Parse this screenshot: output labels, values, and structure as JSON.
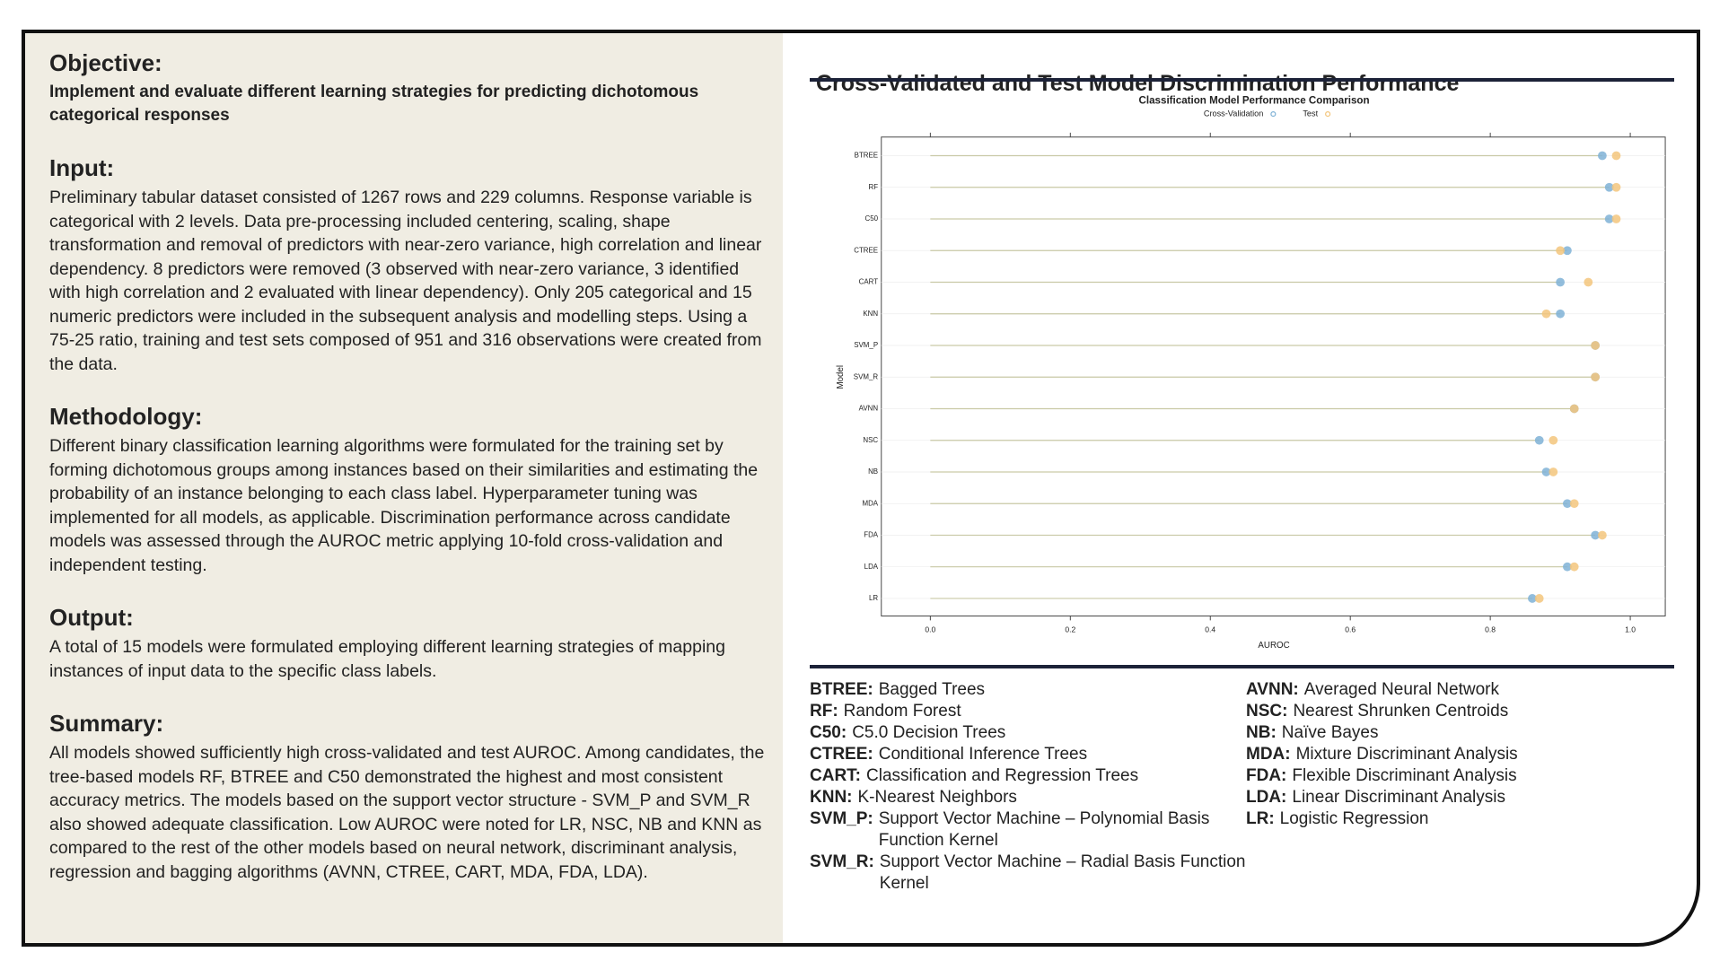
{
  "left": {
    "sections": [
      {
        "heading": "Objective:",
        "lead": "Implement and evaluate different learning strategies for predicting dichotomous categorical responses"
      },
      {
        "heading": "Input:",
        "body": "Preliminary tabular dataset consisted of 1267 rows and 229 columns. Response variable is categorical with 2 levels. Data pre-processing included centering, scaling, shape transformation and removal of predictors with near-zero variance, high correlation and linear dependency. 8 predictors were removed (3 observed with near-zero variance, 3 identified with high correlation and 2 evaluated with linear dependency). Only 205 categorical and 15 numeric predictors were included in the subsequent analysis and modelling steps. Using a 75-25 ratio, training and test sets composed of 951 and 316 observations were created from the data."
      },
      {
        "heading": "Methodology:",
        "body": "Different binary classification learning algorithms were formulated for the training set by forming dichotomous groups among instances based on their similarities and estimating the probability of an instance belonging to each class label. Hyperparameter tuning was implemented for all models, as applicable. Discrimination performance across candidate models was assessed through the AUROC metric applying 10-fold cross-validation and independent testing."
      },
      {
        "heading": "Output:",
        "body": "A total of 15 models were formulated employing different learning strategies of mapping instances of input data to the specific class labels."
      },
      {
        "heading": "Summary:",
        "body": "All models showed sufficiently high cross-validated and test AUROC. Among candidates, the tree-based models RF, BTREE and C50 demonstrated the highest and most consistent accuracy metrics. The models based on the support vector structure - SVM_P and SVM_R also showed adequate classification. Low AUROC were noted for LR, NSC, NB and KNN as compared to the rest of the other models based on neural network, discriminant analysis, regression and bagging algorithms (AVNN, CTREE, CART, MDA, FDA, LDA)."
      }
    ]
  },
  "panel_title": "Cross-Validated and Test Model Discrimination Performance",
  "chart_data": {
    "type": "dot",
    "title": "Classification Model Performance Comparison",
    "x_label": "AUROC",
    "y_label": "Model",
    "categories": [
      "BTREE",
      "RF",
      "C50",
      "CTREE",
      "CART",
      "KNN",
      "SVM_P",
      "SVM_R",
      "AVNN",
      "NSC",
      "NB",
      "MDA",
      "FDA",
      "LDA",
      "LR"
    ],
    "series": [
      {
        "name": "Cross-Validation",
        "color": "#7fb2d6",
        "values": [
          0.96,
          0.97,
          0.97,
          0.91,
          0.9,
          0.9,
          0.95,
          0.95,
          0.92,
          0.87,
          0.88,
          0.91,
          0.95,
          0.91,
          0.86
        ]
      },
      {
        "name": "Test",
        "color": "#f3c67c",
        "values": [
          0.98,
          0.98,
          0.98,
          0.9,
          0.94,
          0.88,
          0.95,
          0.95,
          0.92,
          0.89,
          0.89,
          0.92,
          0.96,
          0.92,
          0.87
        ]
      }
    ],
    "xlim": [
      -0.07,
      1.05
    ],
    "xticks": [
      {
        "value": 0,
        "label": "0.0"
      },
      0.2,
      0.4,
      0.6,
      0.8,
      {
        "value": 1,
        "label": "1.0"
      }
    ],
    "segment_color": "#c9c9a6"
  },
  "abbreviations": {
    "columns": [
      [
        {
          "abbr": "BTREE:",
          "desc": "Bagged Trees"
        },
        {
          "abbr": "RF:",
          "desc": "Random Forest"
        },
        {
          "abbr": "C50:",
          "desc": "C5.0 Decision Trees"
        },
        {
          "abbr": "CTREE:",
          "desc": "Conditional Inference Trees"
        },
        {
          "abbr": "CART:",
          "desc": "Classification and Regression Trees"
        },
        {
          "abbr": "KNN:",
          "desc": "K-Nearest Neighbors"
        },
        {
          "abbr": "SVM_P:",
          "desc": "Support Vector Machine – Polynomial Basis Function Kernel"
        },
        {
          "abbr": "SVM_R:",
          "desc": "Support Vector Machine – Radial Basis Function Kernel"
        }
      ],
      [
        {
          "abbr": "AVNN:",
          "desc": "Averaged Neural Network"
        },
        {
          "abbr": "NSC:",
          "desc": "Nearest Shrunken Centroids"
        },
        {
          "abbr": "NB:",
          "desc": "Naïve Bayes"
        },
        {
          "abbr": "MDA:",
          "desc": "Mixture Discriminant Analysis"
        },
        {
          "abbr": "FDA:",
          "desc": "Flexible Discriminant Analysis"
        },
        {
          "abbr": "LDA:",
          "desc": "Linear Discriminant Analysis"
        },
        {
          "abbr": "LR:",
          "desc": "Logistic Regression"
        }
      ]
    ]
  }
}
